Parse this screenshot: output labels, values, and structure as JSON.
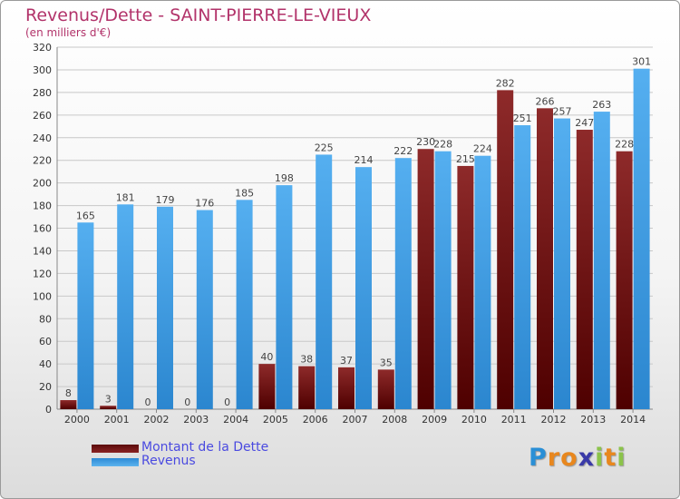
{
  "chart_data": {
    "type": "bar",
    "title": "Revenus/Dette - SAINT-PIERRE-LE-VIEUX",
    "subtitle": "(en milliers d'€)",
    "categories": [
      "2000",
      "2001",
      "2002",
      "2003",
      "2004",
      "2005",
      "2006",
      "2007",
      "2008",
      "2009",
      "2010",
      "2011",
      "2012",
      "2013",
      "2014"
    ],
    "series": [
      {
        "name": "Montant de la Dette",
        "color": "#7a1818",
        "values": [
          8,
          3,
          0,
          0,
          0,
          40,
          38,
          37,
          35,
          230,
          215,
          282,
          266,
          247,
          228
        ]
      },
      {
        "name": "Revenus",
        "color": "#3d9ee3",
        "values": [
          165,
          181,
          179,
          176,
          185,
          198,
          225,
          214,
          222,
          228,
          224,
          251,
          257,
          263,
          301
        ]
      }
    ],
    "ylim": [
      0,
      320
    ],
    "yticks": [
      0,
      20,
      40,
      60,
      80,
      100,
      120,
      140,
      160,
      180,
      200,
      220,
      240,
      260,
      280,
      300,
      320
    ],
    "grid": true,
    "legend": "bottom-left"
  },
  "logo": {
    "letters": [
      "P",
      "r",
      "o",
      "x",
      "i",
      "t",
      "i"
    ],
    "colors": [
      "#2a8fd6",
      "#e8871e",
      "#e8871e",
      "#3a3aa8",
      "#8bc34a",
      "#e8871e",
      "#8bc34a"
    ]
  }
}
